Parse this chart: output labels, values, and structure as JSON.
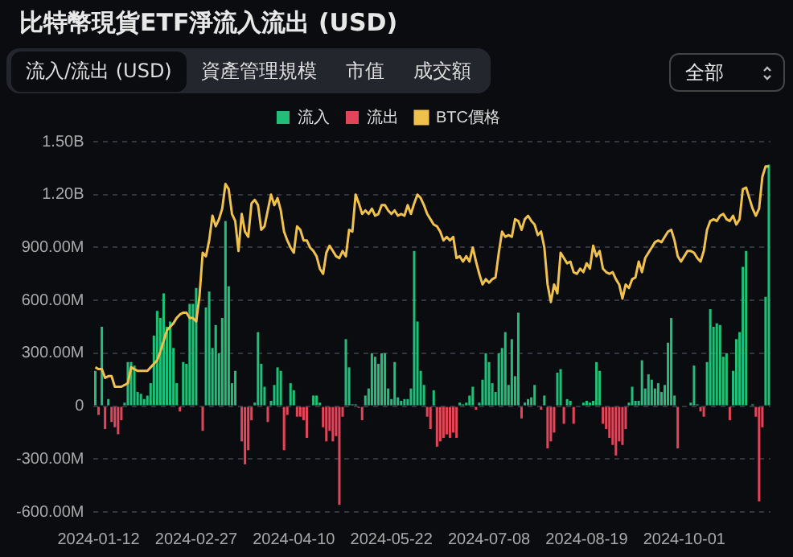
{
  "chart_data": {
    "type": "bar",
    "title": "比特幣現貨ETF淨流入流出 (USD)",
    "annotations": [
      "流入/流出 (USD)",
      "資產管理規模",
      "市值",
      "成交額",
      "全部"
    ],
    "categories": [
      null,
      "2024-01-12",
      null,
      null,
      null,
      null,
      null,
      null,
      null,
      null,
      null,
      null,
      null,
      null,
      null,
      null,
      null,
      null,
      null,
      null,
      null,
      null,
      null,
      null,
      null,
      null,
      null,
      null,
      null,
      null,
      null,
      "2024-02-27",
      null,
      null,
      null,
      null,
      null,
      null,
      null,
      null,
      null,
      null,
      null,
      null,
      null,
      null,
      null,
      null,
      null,
      null,
      null,
      null,
      null,
      null,
      null,
      null,
      null,
      null,
      null,
      null,
      null,
      "2024-04-10",
      null,
      null,
      null,
      null,
      null,
      null,
      null,
      null,
      null,
      null,
      null,
      null,
      null,
      null,
      null,
      null,
      null,
      null,
      null,
      null,
      null,
      null,
      null,
      null,
      null,
      null,
      null,
      null,
      null,
      "2024-05-22",
      null,
      null,
      null,
      null,
      null,
      null,
      null,
      null,
      null,
      null,
      null,
      null,
      null,
      null,
      null,
      null,
      null,
      null,
      null,
      null,
      null,
      null,
      null,
      null,
      null,
      null,
      null,
      null,
      null,
      "2024-07-08",
      null,
      null,
      null,
      null,
      null,
      null,
      null,
      null,
      null,
      null,
      null,
      null,
      null,
      null,
      null,
      null,
      null,
      null,
      null,
      null,
      null,
      null,
      null,
      null,
      null,
      null,
      null,
      null,
      null,
      "2024-08-19",
      null,
      null,
      null,
      null,
      null,
      null,
      null,
      null,
      null,
      null,
      null,
      null,
      null,
      null,
      null,
      null,
      null,
      null,
      null,
      null,
      null,
      null,
      null,
      null,
      null,
      null,
      null,
      null,
      null,
      "2024-10-01",
      null,
      null,
      null,
      null,
      null,
      null,
      null,
      null,
      null,
      null,
      null,
      null,
      null,
      null,
      null,
      null,
      null,
      null,
      null,
      null,
      null,
      null,
      null,
      null,
      null,
      null
    ],
    "series": [
      {
        "name": "流入",
        "color": "#1fbf7a",
        "values": [
          200000000.0,
          null,
          450000000.0,
          null,
          40000000.0,
          null,
          null,
          null,
          null,
          20000000.0,
          250000000.0,
          250000000.0,
          230000000.0,
          80000000.0,
          70000000.0,
          40000000.0,
          60000000.0,
          130000000.0,
          400000000.0,
          540000000.0,
          500000000.0,
          640000000.0,
          450000000.0,
          480000000.0,
          330000000.0,
          130000000.0,
          null,
          250000000.0,
          240000000.0,
          580000000.0,
          580000000.0,
          670000000.0,
          0,
          null,
          560000000.0,
          650000000.0,
          330000000.0,
          460000000.0,
          300000000.0,
          500000000.0,
          1050000000.0,
          680000000.0,
          130000000.0,
          200000000.0,
          null,
          null,
          null,
          null,
          null,
          20000000.0,
          420000000.0,
          240000000.0,
          110000000.0,
          null,
          30000000.0,
          120000000.0,
          220000000.0,
          200000000.0,
          null,
          null,
          130000000.0,
          90000000.0,
          null,
          null,
          null,
          null,
          0,
          60000000.0,
          60000000.0,
          20000000.0,
          null,
          null,
          null,
          null,
          null,
          null,
          null,
          380000000.0,
          220000000.0,
          10000000.0,
          10000000.0,
          null,
          null,
          60000000.0,
          100000000.0,
          300000000.0,
          280000000.0,
          240000000.0,
          300000000.0,
          300000000.0,
          100000000.0,
          40000000.0,
          250000000.0,
          50000000.0,
          30000000.0,
          40000000.0,
          40000000.0,
          100000000.0,
          880000000.0,
          480000000.0,
          200000000.0,
          120000000.0,
          null,
          null,
          90000000.0,
          null,
          null,
          null,
          null,
          null,
          null,
          null,
          20000000.0,
          10000000.0,
          20000000.0,
          60000000.0,
          110000000.0,
          null,
          20000000.0,
          150000000.0,
          300000000.0,
          250000000.0,
          130000000.0,
          80000000.0,
          300000000.0,
          330000000.0,
          420000000.0,
          120000000.0,
          380000000.0,
          170000000.0,
          530000000.0,
          null,
          20000000.0,
          40000000.0,
          50000000.0,
          120000000.0,
          0,
          null,
          60000000.0,
          null,
          null,
          null,
          190000000.0,
          210000000.0,
          null,
          40000000.0,
          30000000.0,
          null,
          0,
          0,
          20000000.0,
          30000000.0,
          20000000.0,
          30000000.0,
          250000000.0,
          200000000.0,
          null,
          null,
          null,
          null,
          null,
          null,
          null,
          null,
          20000000.0,
          110000000.0,
          30000000.0,
          30000000.0,
          260000000.0,
          100000000.0,
          180000000.0,
          150000000.0,
          100000000.0,
          130000000.0,
          80000000.0,
          120000000.0,
          360000000.0,
          500000000.0,
          60000000.0,
          null,
          0,
          0,
          0,
          20000000.0,
          230000000.0,
          10000000.0,
          null,
          null,
          250000000.0,
          550000000.0,
          450000000.0,
          470000000.0,
          460000000.0,
          280000000.0,
          300000000.0,
          null,
          200000000.0,
          380000000.0,
          420000000.0,
          790000000.0,
          880000000.0,
          0,
          10000000.0,
          null,
          null,
          null,
          620000000.0,
          1370000000.0
        ]
      },
      {
        "name": "流出",
        "color": "#e0455a",
        "values": [
          null,
          -50000000.0,
          null,
          -130000000.0,
          null,
          -90000000.0,
          -120000000.0,
          -160000000.0,
          -80000000.0,
          null,
          null,
          null,
          null,
          null,
          null,
          null,
          null,
          null,
          null,
          null,
          null,
          null,
          null,
          null,
          null,
          null,
          -30000000.0,
          null,
          null,
          null,
          null,
          null,
          null,
          -140000000.0,
          null,
          null,
          null,
          null,
          null,
          null,
          null,
          null,
          null,
          null,
          null,
          -200000000.0,
          -330000000.0,
          -250000000.0,
          -80000000.0,
          null,
          null,
          null,
          null,
          -90000000.0,
          null,
          null,
          null,
          null,
          -250000000.0,
          -50000000.0,
          null,
          null,
          -60000000.0,
          -60000000.0,
          -80000000.0,
          -180000000.0,
          null,
          null,
          null,
          null,
          -120000000.0,
          -200000000.0,
          -140000000.0,
          -200000000.0,
          -170000000.0,
          -560000000.0,
          -60000000.0,
          null,
          null,
          null,
          null,
          -10000000.0,
          -80000000.0,
          null,
          null,
          null,
          null,
          null,
          null,
          null,
          null,
          null,
          null,
          null,
          null,
          null,
          null,
          null,
          null,
          null,
          null,
          null,
          -60000000.0,
          -130000000.0,
          null,
          -230000000.0,
          -200000000.0,
          -180000000.0,
          -160000000.0,
          -180000000.0,
          -150000000.0,
          -180000000.0,
          null,
          null,
          null,
          null,
          null,
          -20000000.0,
          null,
          null,
          null,
          null,
          null,
          null,
          null,
          null,
          null,
          null,
          null,
          null,
          null,
          -70000000.0,
          null,
          null,
          null,
          null,
          null,
          -20000000.0,
          null,
          -240000000.0,
          -200000000.0,
          -150000000.0,
          null,
          null,
          -100000000.0,
          null,
          null,
          -100000000.0,
          null,
          null,
          null,
          null,
          null,
          null,
          null,
          null,
          -100000000.0,
          -130000000.0,
          -180000000.0,
          -220000000.0,
          -280000000.0,
          -200000000.0,
          -220000000.0,
          -130000000.0,
          null,
          null,
          null,
          null,
          null,
          null,
          null,
          null,
          null,
          null,
          null,
          null,
          null,
          null,
          null,
          -240000000.0,
          null,
          null,
          null,
          null,
          null,
          null,
          -30000000.0,
          -60000000.0,
          null,
          null,
          null,
          null,
          null,
          null,
          null,
          -80000000.0,
          null,
          null,
          null,
          null,
          null,
          null,
          null,
          -60000000.0,
          -540000000.0,
          -120000000.0,
          null,
          null
        ]
      },
      {
        "name": "BTC價格",
        "type": "line",
        "color": "#f0c14b",
        "values": [
          220000000.0,
          210000000.0,
          210000000.0,
          160000000.0,
          170000000.0,
          170000000.0,
          110000000.0,
          110000000.0,
          110000000.0,
          120000000.0,
          130000000.0,
          220000000.0,
          210000000.0,
          200000000.0,
          200000000.0,
          200000000.0,
          200000000.0,
          220000000.0,
          240000000.0,
          260000000.0,
          310000000.0,
          370000000.0,
          430000000.0,
          450000000.0,
          470000000.0,
          500000000.0,
          520000000.0,
          530000000.0,
          530000000.0,
          500000000.0,
          500000000.0,
          480000000.0,
          620000000.0,
          870000000.0,
          850000000.0,
          940000000.0,
          1080000000.0,
          1020000000.0,
          1060000000.0,
          1120000000.0,
          1260000000.0,
          1230000000.0,
          1090000000.0,
          1050000000.0,
          880000000.0,
          1090000000.0,
          990000000.0,
          960000000.0,
          1150000000.0,
          1170000000.0,
          1140000000.0,
          1000000000.0,
          1020000000.0,
          1110000000.0,
          1200000000.0,
          1140000000.0,
          1180000000.0,
          1110000000.0,
          990000000.0,
          940000000.0,
          900000000.0,
          870000000.0,
          1020000000.0,
          1000000000.0,
          940000000.0,
          940000000.0,
          900000000.0,
          880000000.0,
          850000000.0,
          780000000.0,
          750000000.0,
          870000000.0,
          910000000.0,
          880000000.0,
          850000000.0,
          840000000.0,
          880000000.0,
          850000000.0,
          1000000000.0,
          990000000.0,
          1200000000.0,
          1150000000.0,
          1090000000.0,
          1110000000.0,
          1090000000.0,
          1120000000.0,
          1080000000.0,
          1090000000.0,
          1140000000.0,
          1140000000.0,
          1110000000.0,
          1090000000.0,
          1110000000.0,
          1080000000.0,
          1090000000.0,
          1080000000.0,
          1140000000.0,
          1090000000.0,
          1150000000.0,
          1200000000.0,
          1180000000.0,
          1140000000.0,
          1090000000.0,
          1060000000.0,
          1030000000.0,
          1020000000.0,
          990000000.0,
          940000000.0,
          960000000.0,
          940000000.0,
          960000000.0,
          840000000.0,
          850000000.0,
          820000000.0,
          850000000.0,
          820000000.0,
          900000000.0,
          820000000.0,
          750000000.0,
          690000000.0,
          720000000.0,
          700000000.0,
          720000000.0,
          730000000.0,
          870000000.0,
          990000000.0,
          960000000.0,
          970000000.0,
          960000000.0,
          1060000000.0,
          1050000000.0,
          1000000000.0,
          1060000000.0,
          1080000000.0,
          1050000000.0,
          1030000000.0,
          970000000.0,
          990000000.0,
          900000000.0,
          690000000.0,
          590000000.0,
          690000000.0,
          640000000.0,
          870000000.0,
          840000000.0,
          810000000.0,
          820000000.0,
          760000000.0,
          750000000.0,
          780000000.0,
          760000000.0,
          810000000.0,
          780000000.0,
          910000000.0,
          850000000.0,
          880000000.0,
          780000000.0,
          760000000.0,
          750000000.0,
          760000000.0,
          720000000.0,
          690000000.0,
          610000000.0,
          690000000.0,
          670000000.0,
          720000000.0,
          730000000.0,
          820000000.0,
          760000000.0,
          840000000.0,
          870000000.0,
          900000000.0,
          930000000.0,
          940000000.0,
          930000000.0,
          960000000.0,
          990000000.0,
          1000000000.0,
          940000000.0,
          850000000.0,
          820000000.0,
          850000000.0,
          880000000.0,
          880000000.0,
          870000000.0,
          840000000.0,
          820000000.0,
          880000000.0,
          1000000000.0,
          1050000000.0,
          1060000000.0,
          1050000000.0,
          1080000000.0,
          1090000000.0,
          1060000000.0,
          1050000000.0,
          1080000000.0,
          1030000000.0,
          1060000000.0,
          1230000000.0,
          1240000000.0,
          1180000000.0,
          1120000000.0,
          1080000000.0,
          1120000000.0,
          1300000000.0,
          1360000000.0,
          1360000000.0
        ]
      }
    ],
    "ylim": [
      -600000000.0,
      1500000000.0
    ],
    "yticks": [
      {
        "value": -600000000.0,
        "label": "-600.00M"
      },
      {
        "value": -300000000.0,
        "label": "-300.00M"
      },
      0,
      {
        "value": 300000000.0,
        "label": "300.00M"
      },
      {
        "value": 600000000.0,
        "label": "600.00M"
      },
      {
        "value": 900000000.0,
        "label": "900.00M"
      },
      {
        "value": 1200000000.0,
        "label": "1.20B"
      },
      {
        "value": 1500000000.0,
        "label": "1.50B"
      }
    ],
    "grid": "y",
    "legend": "top",
    "marker": "none"
  }
}
